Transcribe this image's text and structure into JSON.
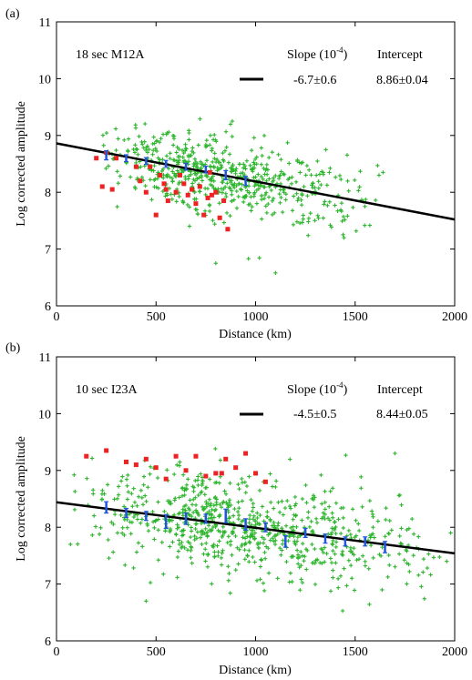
{
  "colors": {
    "green_points": "#2db52d",
    "red_points": "#ee2222",
    "blue_bars": "#2255dd",
    "fit_line": "#000000"
  },
  "chart_data": [
    {
      "type": "scatter",
      "panel_label": "(a)",
      "annotation": "18 sec M12A",
      "slope_header": "Slope (10",
      "slope_exp": "-4",
      "slope_header_close": ")",
      "intercept_header": "Intercept",
      "slope_value": "-6.7±0.6",
      "intercept_value": "8.86±0.04",
      "xlabel": "Distance (km)",
      "ylabel": "Log corrected amplitude",
      "xlim": [
        0,
        2000
      ],
      "ylim": [
        6,
        11
      ],
      "xticks": [
        "0",
        "500",
        "1000",
        "1500",
        "2000"
      ],
      "yticks": [
        "6",
        "7",
        "8",
        "9",
        "10",
        "11"
      ],
      "fit_line": {
        "slope_per_km": -0.00067,
        "intercept": 8.86
      },
      "green_scatter": {
        "count": 620,
        "x_range": [
          180,
          1650
        ],
        "x_peak": 700,
        "spread": 0.33,
        "outliers": [
          [
            1640,
            8.35
          ],
          [
            1620,
            8.3
          ],
          [
            1100,
            6.58
          ],
          [
            800,
            6.75
          ]
        ]
      },
      "red_points": [
        [
          200,
          8.6
        ],
        [
          230,
          8.1
        ],
        [
          250,
          8.7
        ],
        [
          280,
          8.05
        ],
        [
          300,
          8.6
        ],
        [
          400,
          8.45
        ],
        [
          420,
          8.2
        ],
        [
          450,
          8.0
        ],
        [
          470,
          8.45
        ],
        [
          500,
          7.6
        ],
        [
          520,
          8.3
        ],
        [
          540,
          8.15
        ],
        [
          550,
          8.05
        ],
        [
          560,
          7.85
        ],
        [
          600,
          8.0
        ],
        [
          620,
          8.3
        ],
        [
          640,
          8.15
        ],
        [
          660,
          7.95
        ],
        [
          680,
          8.05
        ],
        [
          700,
          7.8
        ],
        [
          720,
          8.1
        ],
        [
          740,
          7.6
        ],
        [
          760,
          7.9
        ],
        [
          770,
          8.35
        ],
        [
          780,
          7.95
        ],
        [
          800,
          8.0
        ],
        [
          820,
          7.55
        ],
        [
          840,
          7.85
        ],
        [
          860,
          7.35
        ]
      ],
      "binned_means": [
        {
          "x": 250,
          "y": 8.65,
          "err": 0.08
        },
        {
          "x": 350,
          "y": 8.6,
          "err": 0.06
        },
        {
          "x": 450,
          "y": 8.55,
          "err": 0.06
        },
        {
          "x": 550,
          "y": 8.5,
          "err": 0.06
        },
        {
          "x": 650,
          "y": 8.45,
          "err": 0.06
        },
        {
          "x": 750,
          "y": 8.4,
          "err": 0.06
        },
        {
          "x": 850,
          "y": 8.3,
          "err": 0.08
        },
        {
          "x": 950,
          "y": 8.2,
          "err": 0.08
        }
      ]
    },
    {
      "type": "scatter",
      "panel_label": "(b)",
      "annotation": "10 sec I23A",
      "slope_header": "Slope (10",
      "slope_exp": "-4",
      "slope_header_close": ")",
      "intercept_header": "Intercept",
      "slope_value": "-4.5±0.5",
      "intercept_value": "8.44±0.05",
      "xlabel": "Distance (km)",
      "ylabel": "Log corrected amplitude",
      "xlim": [
        0,
        2000
      ],
      "ylim": [
        6,
        11
      ],
      "xticks": [
        "0",
        "500",
        "1000",
        "1500",
        "2000"
      ],
      "yticks": [
        "6",
        "7",
        "8",
        "9",
        "10",
        "11"
      ],
      "fit_line": {
        "slope_per_km": -0.00045,
        "intercept": 8.44
      },
      "green_scatter": {
        "count": 780,
        "x_range": [
          60,
          1980
        ],
        "x_peak": 800,
        "spread": 0.42,
        "outliers": [
          [
            1980,
            7.9
          ],
          [
            1960,
            7.4
          ],
          [
            1700,
            9.3
          ],
          [
            70,
            7.7
          ],
          [
            450,
            6.7
          ]
        ]
      },
      "red_points": [
        [
          150,
          9.25
        ],
        [
          250,
          9.35
        ],
        [
          350,
          9.15
        ],
        [
          400,
          9.1
        ],
        [
          450,
          9.2
        ],
        [
          500,
          9.05
        ],
        [
          550,
          8.85
        ],
        [
          600,
          9.25
        ],
        [
          650,
          9.0
        ],
        [
          700,
          9.25
        ],
        [
          750,
          8.9
        ],
        [
          800,
          8.95
        ],
        [
          850,
          9.2
        ],
        [
          900,
          9.05
        ],
        [
          950,
          9.3
        ],
        [
          1000,
          8.95
        ],
        [
          1050,
          8.8
        ],
        [
          830,
          8.95
        ]
      ],
      "binned_means": [
        {
          "x": 250,
          "y": 8.35,
          "err": 0.1
        },
        {
          "x": 350,
          "y": 8.25,
          "err": 0.08
        },
        {
          "x": 450,
          "y": 8.2,
          "err": 0.08
        },
        {
          "x": 550,
          "y": 8.1,
          "err": 0.12
        },
        {
          "x": 650,
          "y": 8.15,
          "err": 0.1
        },
        {
          "x": 750,
          "y": 8.15,
          "err": 0.08
        },
        {
          "x": 850,
          "y": 8.2,
          "err": 0.12
        },
        {
          "x": 950,
          "y": 8.05,
          "err": 0.1
        },
        {
          "x": 1050,
          "y": 8.0,
          "err": 0.08
        },
        {
          "x": 1150,
          "y": 7.75,
          "err": 0.1
        },
        {
          "x": 1250,
          "y": 7.9,
          "err": 0.08
        },
        {
          "x": 1350,
          "y": 7.8,
          "err": 0.08
        },
        {
          "x": 1450,
          "y": 7.75,
          "err": 0.08
        },
        {
          "x": 1550,
          "y": 7.75,
          "err": 0.08
        },
        {
          "x": 1650,
          "y": 7.65,
          "err": 0.1
        }
      ]
    }
  ]
}
